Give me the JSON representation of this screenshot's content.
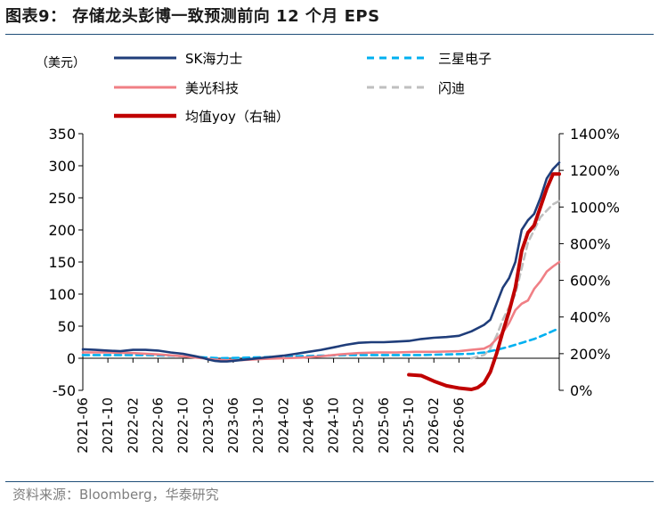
{
  "title": "图表9： 存储龙头彭博一致预测前向 12 个月 EPS",
  "source": "资料来源：Bloomberg，华泰研究",
  "chart_data": {
    "type": "line",
    "unit_label": "（美元）",
    "y_left": {
      "min": -50,
      "max": 350,
      "ticks": [
        "350",
        "300",
        "250",
        "200",
        "150",
        "100",
        "50",
        "0",
        "-50"
      ]
    },
    "y_right": {
      "min": 0,
      "max": 1400,
      "ticks": [
        "1400%",
        "1200%",
        "1000%",
        "800%",
        "600%",
        "400%",
        "200%",
        "0%"
      ]
    },
    "x_ticks": [
      "2021-06",
      "2021-10",
      "2022-02",
      "2022-06",
      "2022-10",
      "2023-02",
      "2023-06",
      "2023-10",
      "2024-02",
      "2024-06",
      "2024-10",
      "2025-02",
      "2025-06",
      "2025-10",
      "2026-02",
      "2026-06"
    ],
    "series": [
      {
        "name": "SK海力士",
        "color": "#1f3d7a",
        "style": "solid",
        "axis": "left",
        "points": [
          [
            0,
            14
          ],
          [
            2,
            13
          ],
          [
            4,
            12
          ],
          [
            6,
            11
          ],
          [
            8,
            13
          ],
          [
            10,
            13
          ],
          [
            12,
            12
          ],
          [
            14,
            9
          ],
          [
            16,
            7
          ],
          [
            18,
            3
          ],
          [
            19,
            1
          ],
          [
            20,
            -2
          ],
          [
            21,
            -4
          ],
          [
            22,
            -5
          ],
          [
            23,
            -5
          ],
          [
            24,
            -4
          ],
          [
            25,
            -3
          ],
          [
            26,
            -2
          ],
          [
            27,
            -1
          ],
          [
            28,
            0
          ],
          [
            30,
            2
          ],
          [
            32,
            4
          ],
          [
            34,
            7
          ],
          [
            36,
            10
          ],
          [
            38,
            13
          ],
          [
            40,
            17
          ],
          [
            42,
            21
          ],
          [
            44,
            24
          ],
          [
            46,
            25
          ],
          [
            48,
            25
          ],
          [
            50,
            26
          ],
          [
            52,
            27
          ],
          [
            54,
            30
          ],
          [
            56,
            32
          ],
          [
            58,
            33
          ],
          [
            60,
            35
          ],
          [
            62,
            42
          ],
          [
            64,
            52
          ],
          [
            65,
            60
          ],
          [
            66,
            85
          ],
          [
            67,
            110
          ],
          [
            68,
            125
          ],
          [
            69,
            150
          ],
          [
            70,
            200
          ],
          [
            71,
            215
          ],
          [
            72,
            225
          ],
          [
            73,
            250
          ],
          [
            74,
            280
          ],
          [
            75,
            295
          ],
          [
            76,
            305
          ]
        ]
      },
      {
        "name": "三星电子",
        "color": "#00b0f0",
        "style": "dashed",
        "axis": "left",
        "points": [
          [
            0,
            5
          ],
          [
            10,
            5
          ],
          [
            14,
            4
          ],
          [
            18,
            2
          ],
          [
            22,
            0
          ],
          [
            26,
            1
          ],
          [
            30,
            2
          ],
          [
            34,
            3
          ],
          [
            38,
            4
          ],
          [
            42,
            5
          ],
          [
            46,
            5
          ],
          [
            50,
            5
          ],
          [
            54,
            5
          ],
          [
            58,
            6
          ],
          [
            62,
            7
          ],
          [
            64,
            9
          ],
          [
            66,
            13
          ],
          [
            68,
            18
          ],
          [
            70,
            24
          ],
          [
            72,
            30
          ],
          [
            74,
            38
          ],
          [
            76,
            47
          ]
        ]
      },
      {
        "name": "美光科技",
        "color": "#f07f85",
        "style": "solid",
        "axis": "left",
        "points": [
          [
            0,
            9
          ],
          [
            4,
            9
          ],
          [
            8,
            8
          ],
          [
            12,
            6
          ],
          [
            16,
            3
          ],
          [
            19,
            0
          ],
          [
            21,
            -2
          ],
          [
            23,
            -3
          ],
          [
            25,
            -3
          ],
          [
            27,
            -2
          ],
          [
            29,
            -1
          ],
          [
            32,
            0
          ],
          [
            35,
            1
          ],
          [
            38,
            3
          ],
          [
            41,
            6
          ],
          [
            44,
            8
          ],
          [
            47,
            9
          ],
          [
            50,
            9
          ],
          [
            53,
            10
          ],
          [
            56,
            10
          ],
          [
            60,
            11
          ],
          [
            62,
            13
          ],
          [
            64,
            15
          ],
          [
            65,
            20
          ],
          [
            66,
            30
          ],
          [
            67,
            40
          ],
          [
            68,
            55
          ],
          [
            69,
            75
          ],
          [
            70,
            85
          ],
          [
            71,
            90
          ],
          [
            72,
            108
          ],
          [
            73,
            120
          ],
          [
            74,
            135
          ],
          [
            75,
            143
          ],
          [
            76,
            150
          ]
        ]
      },
      {
        "name": "闪迪",
        "color": "#bfbfbf",
        "style": "dashed",
        "axis": "left",
        "points": [
          [
            62,
            0
          ],
          [
            64,
            5
          ],
          [
            65,
            15
          ],
          [
            66,
            35
          ],
          [
            67,
            60
          ],
          [
            68,
            80
          ],
          [
            69,
            100
          ],
          [
            70,
            140
          ],
          [
            71,
            180
          ],
          [
            72,
            200
          ],
          [
            73,
            220
          ],
          [
            74,
            230
          ],
          [
            75,
            240
          ],
          [
            76,
            245
          ]
        ]
      },
      {
        "name": "均值yoy（右轴）",
        "color": "#c00000",
        "style": "solid",
        "axis": "right",
        "points": [
          [
            52,
            85
          ],
          [
            54,
            80
          ],
          [
            56,
            50
          ],
          [
            58,
            25
          ],
          [
            60,
            12
          ],
          [
            62,
            5
          ],
          [
            63,
            15
          ],
          [
            64,
            40
          ],
          [
            65,
            100
          ],
          [
            66,
            200
          ],
          [
            67,
            320
          ],
          [
            68,
            430
          ],
          [
            69,
            560
          ],
          [
            70,
            760
          ],
          [
            71,
            860
          ],
          [
            72,
            900
          ],
          [
            73,
            1000
          ],
          [
            74,
            1100
          ],
          [
            75,
            1180
          ],
          [
            76,
            1180
          ]
        ]
      }
    ]
  }
}
